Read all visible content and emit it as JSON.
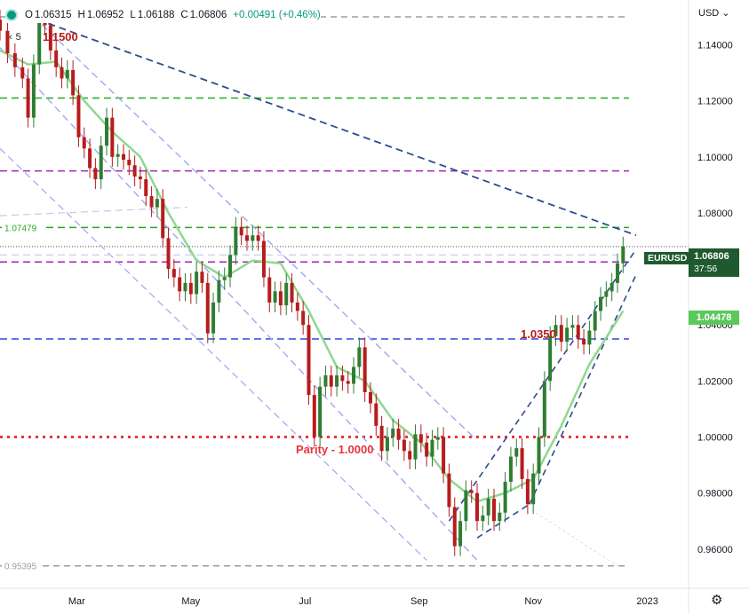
{
  "legend": {
    "open_label": "O",
    "open": "1.06315",
    "high_label": "H",
    "high": "1.06952",
    "low_label": "L",
    "low": "1.06188",
    "close_label": "C",
    "close": "1.06806",
    "change": "+0.00491 (+0.46%)"
  },
  "currency": "USD",
  "interval": "5",
  "symbol": "EURUSD",
  "last_price": "1.06806",
  "countdown": "37:56",
  "ma_value": "1.04478",
  "annotations": {
    "high_label": "1.1500",
    "pivot_label": "1.0350",
    "parity_label": "Parity - 1.0000",
    "left_level_1": "1.07479",
    "left_level_2": "0.95395"
  },
  "colors": {
    "up": "#2e7d32",
    "down": "#b71c1c",
    "ma": "#8fd88f",
    "parity": "#e8343c",
    "trend_dark": "#2e4b8f",
    "channel_light": "#9fa8f0",
    "purple": "#9c27b0",
    "green_dash": "#22aa22",
    "blue_dash": "#3344dd"
  },
  "chart_data": {
    "type": "candlestick",
    "symbol": "EURUSD",
    "ylim": [
      0.946,
      1.156
    ],
    "y_ticks": [
      "1.14000",
      "1.12000",
      "1.10000",
      "1.08000",
      "1.06000",
      "1.04000",
      "1.02000",
      "1.00000",
      "0.98000",
      "0.96000"
    ],
    "y_tick_values": [
      1.14,
      1.12,
      1.1,
      1.08,
      1.06,
      1.04,
      1.02,
      1.0,
      0.98,
      0.96
    ],
    "x_ticks": [
      "Mar",
      "May",
      "Jul",
      "Sep",
      "Nov",
      "2023"
    ],
    "x_tick_days": [
      41,
      102,
      163,
      224,
      285,
      346
    ],
    "x_range_days": [
      0,
      368
    ],
    "horizontal_levels": [
      {
        "value": 1.15,
        "style": "gray-dash"
      },
      {
        "value": 1.121,
        "style": "green-dash"
      },
      {
        "value": 1.095,
        "style": "purple-dash"
      },
      {
        "value": 1.0748,
        "style": "green-dash"
      },
      {
        "value": 1.0625,
        "style": "purple-dash"
      },
      {
        "value": 1.035,
        "style": "blue-dash"
      },
      {
        "value": 1.0,
        "style": "parity-dot"
      },
      {
        "value": 0.954,
        "style": "gray-dash"
      }
    ],
    "close_series": [
      [
        0,
        1.145
      ],
      [
        4,
        1.137
      ],
      [
        8,
        1.132
      ],
      [
        12,
        1.128
      ],
      [
        15,
        1.114
      ],
      [
        18,
        1.133
      ],
      [
        21,
        1.148
      ],
      [
        24,
        1.147
      ],
      [
        27,
        1.138
      ],
      [
        30,
        1.132
      ],
      [
        33,
        1.128
      ],
      [
        36,
        1.131
      ],
      [
        39,
        1.122
      ],
      [
        42,
        1.107
      ],
      [
        45,
        1.103
      ],
      [
        48,
        1.096
      ],
      [
        51,
        1.092
      ],
      [
        54,
        1.104
      ],
      [
        57,
        1.114
      ],
      [
        60,
        1.1
      ],
      [
        63,
        1.101
      ],
      [
        66,
        1.099
      ],
      [
        69,
        1.097
      ],
      [
        72,
        1.093
      ],
      [
        75,
        1.092
      ],
      [
        78,
        1.086
      ],
      [
        81,
        1.082
      ],
      [
        84,
        1.085
      ],
      [
        87,
        1.071
      ],
      [
        90,
        1.06
      ],
      [
        93,
        1.057
      ],
      [
        96,
        1.052
      ],
      [
        99,
        1.055
      ],
      [
        102,
        1.051
      ],
      [
        105,
        1.059
      ],
      [
        108,
        1.055
      ],
      [
        111,
        1.037
      ],
      [
        114,
        1.048
      ],
      [
        117,
        1.056
      ],
      [
        120,
        1.057
      ],
      [
        123,
        1.065
      ],
      [
        126,
        1.075
      ],
      [
        129,
        1.072
      ],
      [
        132,
        1.07
      ],
      [
        135,
        1.072
      ],
      [
        138,
        1.07
      ],
      [
        141,
        1.057
      ],
      [
        144,
        1.048
      ],
      [
        147,
        1.052
      ],
      [
        150,
        1.047
      ],
      [
        153,
        1.055
      ],
      [
        156,
        1.048
      ],
      [
        159,
        1.045
      ],
      [
        162,
        1.04
      ],
      [
        165,
        1.015
      ],
      [
        168,
        1.0
      ],
      [
        171,
        1.018
      ],
      [
        174,
        1.022
      ],
      [
        177,
        1.018
      ],
      [
        180,
        1.022
      ],
      [
        183,
        1.02
      ],
      [
        186,
        1.019
      ],
      [
        189,
        1.025
      ],
      [
        192,
        1.032
      ],
      [
        195,
        1.016
      ],
      [
        198,
        1.012
      ],
      [
        201,
        1.004
      ],
      [
        204,
        0.995
      ],
      [
        207,
        1.0
      ],
      [
        210,
        1.003
      ],
      [
        213,
        0.999
      ],
      [
        216,
        0.995
      ],
      [
        219,
        0.992
      ],
      [
        222,
        1.001
      ],
      [
        225,
        0.998
      ],
      [
        228,
        0.993
      ],
      [
        231,
        0.999
      ],
      [
        234,
        1.0
      ],
      [
        237,
        0.987
      ],
      [
        240,
        0.975
      ],
      [
        243,
        0.961
      ],
      [
        246,
        0.97
      ],
      [
        249,
        0.981
      ],
      [
        252,
        0.98
      ],
      [
        255,
        0.97
      ],
      [
        258,
        0.972
      ],
      [
        261,
        0.978
      ],
      [
        264,
        0.97
      ],
      [
        267,
        0.973
      ],
      [
        270,
        0.984
      ],
      [
        273,
        0.993
      ],
      [
        276,
        0.996
      ],
      [
        279,
        0.985
      ],
      [
        282,
        0.976
      ],
      [
        285,
        0.987
      ],
      [
        288,
        1.0
      ],
      [
        291,
        1.02
      ],
      [
        294,
        1.036
      ],
      [
        297,
        1.04
      ],
      [
        300,
        1.034
      ],
      [
        303,
        1.039
      ],
      [
        306,
        1.04
      ],
      [
        309,
        1.035
      ],
      [
        312,
        1.033
      ],
      [
        315,
        1.038
      ],
      [
        318,
        1.045
      ],
      [
        321,
        1.05
      ],
      [
        324,
        1.052
      ],
      [
        327,
        1.055
      ],
      [
        330,
        1.062
      ],
      [
        333,
        1.068
      ]
    ],
    "ma_series": [
      [
        0,
        1.138
      ],
      [
        15,
        1.133
      ],
      [
        30,
        1.134
      ],
      [
        45,
        1.12
      ],
      [
        60,
        1.109
      ],
      [
        75,
        1.1
      ],
      [
        90,
        1.08
      ],
      [
        105,
        1.063
      ],
      [
        120,
        1.057
      ],
      [
        135,
        1.063
      ],
      [
        150,
        1.062
      ],
      [
        165,
        1.045
      ],
      [
        180,
        1.025
      ],
      [
        195,
        1.02
      ],
      [
        210,
        1.006
      ],
      [
        225,
        0.998
      ],
      [
        240,
        0.985
      ],
      [
        255,
        0.977
      ],
      [
        270,
        0.98
      ],
      [
        285,
        0.985
      ],
      [
        300,
        1.004
      ],
      [
        315,
        1.026
      ],
      [
        333,
        1.045
      ]
    ]
  }
}
